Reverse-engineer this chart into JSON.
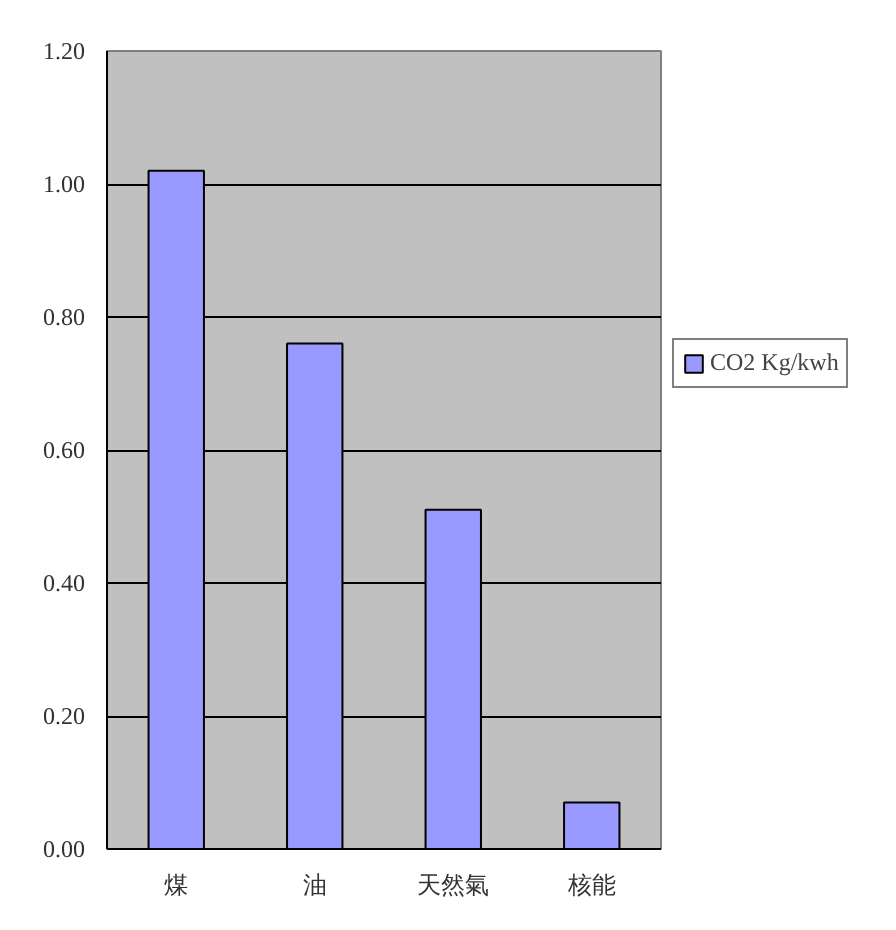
{
  "chart_data": {
    "type": "bar",
    "categories": [
      "煤",
      "油",
      "天然氣",
      "核能"
    ],
    "series": [
      {
        "name": "CO2 Kg/kwh",
        "color": "#9999ff",
        "values": [
          1.02,
          0.76,
          0.51,
          0.07
        ]
      }
    ],
    "ylim": [
      0,
      1.2
    ],
    "yticks": [
      {
        "value": 0,
        "label": "0.00"
      },
      {
        "value": 0.2,
        "label": "0.20"
      },
      {
        "value": 0.4,
        "label": "0.40"
      },
      {
        "value": 0.6,
        "label": "0.60"
      },
      {
        "value": 0.8,
        "label": "0.80"
      },
      {
        "value": 1.0,
        "label": "1.00"
      },
      {
        "value": 1.2,
        "label": "1.20"
      }
    ],
    "grid": "y",
    "legend": "right"
  }
}
